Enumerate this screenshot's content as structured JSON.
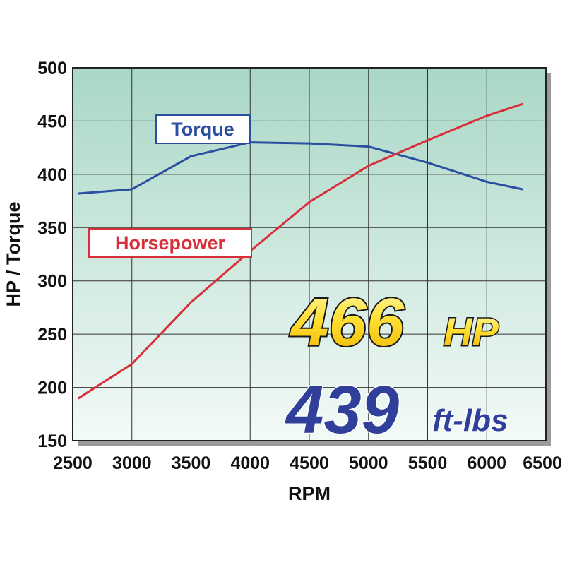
{
  "chart_data": {
    "type": "line",
    "xlabel": "RPM",
    "ylabel": "HP / Torque",
    "xlim": [
      2500,
      6500
    ],
    "ylim": [
      150,
      500
    ],
    "x_ticks": [
      2500,
      3000,
      3500,
      4000,
      4500,
      5000,
      5500,
      6000,
      6500
    ],
    "y_ticks": [
      150,
      200,
      250,
      300,
      350,
      400,
      450,
      500
    ],
    "grid": true,
    "series": [
      {
        "name": "Torque",
        "color": "#2b4fa0",
        "x": [
          2550,
          3000,
          3500,
          4000,
          4500,
          5000,
          5500,
          6000,
          6300
        ],
        "y": [
          382,
          386,
          417,
          430,
          429,
          426,
          411,
          393,
          386
        ]
      },
      {
        "name": "Horsepower",
        "color": "#d8303a",
        "x": [
          2550,
          3000,
          3500,
          4000,
          4500,
          5000,
          5500,
          6000,
          6300
        ],
        "y": [
          190,
          222,
          280,
          328,
          374,
          408,
          432,
          455,
          466
        ]
      }
    ],
    "annotations": {
      "hp_value": "466",
      "hp_unit": "HP",
      "torque_value": "439",
      "torque_unit": "ft-lbs"
    }
  }
}
